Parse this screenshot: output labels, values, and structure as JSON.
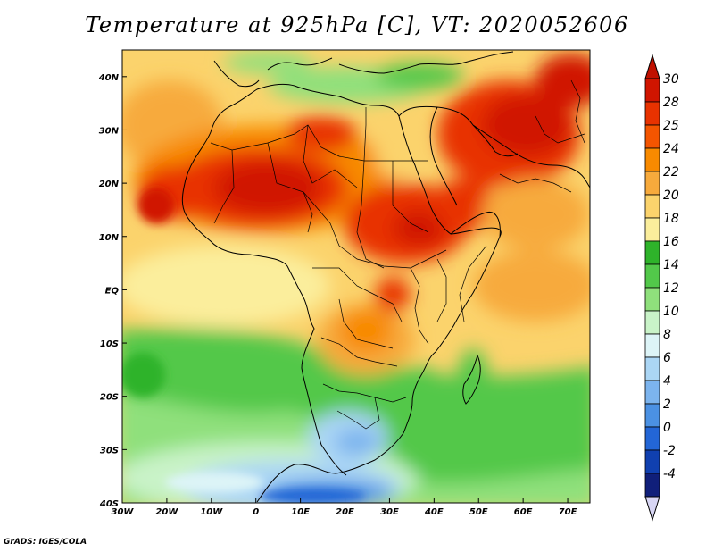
{
  "title": "Temperature at 925hPa [C], VT: 2020052606",
  "credit": "GrADS: IGES/COLA",
  "map": {
    "lon_ticks": [
      "30W",
      "20W",
      "10W",
      "0",
      "10E",
      "20E",
      "30E",
      "40E",
      "50E",
      "60E",
      "70E"
    ],
    "lat_ticks": [
      "40N",
      "30N",
      "20N",
      "10N",
      "EQ",
      "10S",
      "20S",
      "30S",
      "40S"
    ],
    "lon_range": [
      -30,
      75
    ],
    "lat_range": [
      -40,
      45
    ]
  },
  "colorbar": {
    "labels": [
      "30",
      "28",
      "25",
      "24",
      "22",
      "20",
      "18",
      "16",
      "14",
      "12",
      "10",
      "8",
      "6",
      "4",
      "2",
      "0",
      "-2",
      "-4"
    ],
    "colors": [
      "#d01500",
      "#e83200",
      "#f45500",
      "#f88a00",
      "#f7aa3c",
      "#fbd36c",
      "#fbee9c",
      "#2eb32a",
      "#52c84a",
      "#8fe07c",
      "#c9f3c8",
      "#ddf4f7",
      "#abd6f5",
      "#7cb4ee",
      "#4b91e3",
      "#2366d6",
      "#1040b0",
      "#101f7a"
    ],
    "top_color": "#c01000",
    "bottom_color": "#d8d6f4"
  }
}
